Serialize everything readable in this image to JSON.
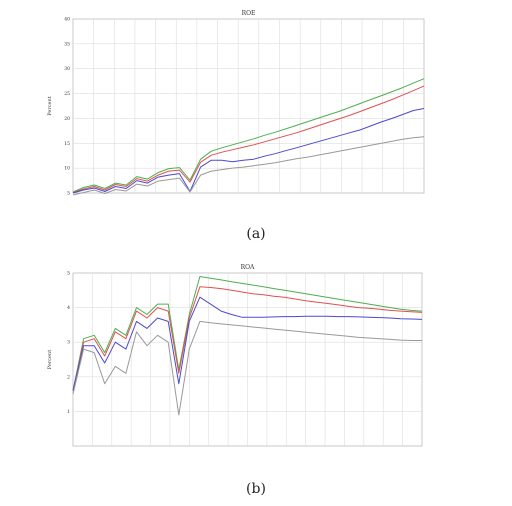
{
  "captions": [
    "(a)",
    "(b)"
  ],
  "chart_data": [
    {
      "type": "line",
      "title": "ROE",
      "ylabel": "Percent",
      "ylim": [
        5,
        40
      ],
      "yticks": [
        "5",
        "10",
        "15",
        "20",
        "25",
        "30",
        "35",
        "40"
      ],
      "grid": true,
      "x": [
        0,
        1,
        2,
        3,
        4,
        5,
        6,
        7,
        8,
        9,
        10,
        11,
        12,
        13,
        14,
        15,
        16,
        17,
        18,
        19,
        20,
        21,
        22,
        23,
        24,
        25,
        26,
        27,
        28,
        29,
        30,
        31,
        32,
        33
      ],
      "series": [
        {
          "color": "#4caf50",
          "values": [
            5.2,
            6.1,
            6.6,
            5.9,
            7.0,
            6.6,
            8.3,
            7.8,
            9.1,
            9.9,
            10.1,
            7.6,
            11.8,
            13.4,
            14.1,
            14.7,
            15.3,
            15.9,
            16.6,
            17.2,
            17.9,
            18.6,
            19.3,
            20.0,
            20.7,
            21.4,
            22.2,
            23.0,
            23.8,
            24.6,
            25.4,
            26.2,
            27.1,
            28.0
          ]
        },
        {
          "color": "#e05050",
          "values": [
            5.1,
            5.8,
            6.3,
            5.6,
            6.7,
            6.3,
            7.9,
            7.4,
            8.6,
            9.4,
            9.6,
            7.2,
            11.2,
            12.6,
            13.2,
            13.7,
            14.2,
            14.7,
            15.3,
            15.9,
            16.5,
            17.1,
            17.8,
            18.5,
            19.2,
            19.9,
            20.6,
            21.4,
            22.2,
            23.0,
            23.8,
            24.7,
            25.6,
            26.5
          ]
        },
        {
          "color": "#4a4ad0",
          "values": [
            5.0,
            5.6,
            6.0,
            5.3,
            6.3,
            5.9,
            7.5,
            7.0,
            8.2,
            8.6,
            8.9,
            5.3,
            10.2,
            11.6,
            11.6,
            11.3,
            11.6,
            11.8,
            12.4,
            12.9,
            13.5,
            14.1,
            14.7,
            15.3,
            15.9,
            16.5,
            17.1,
            17.7,
            18.5,
            19.3,
            20.0,
            20.8,
            21.6,
            22.0
          ]
        },
        {
          "color": "#999999",
          "values": [
            4.6,
            5.1,
            5.6,
            4.9,
            5.7,
            5.4,
            6.8,
            6.4,
            7.4,
            7.7,
            8.0,
            5.2,
            8.6,
            9.4,
            9.7,
            10.0,
            10.2,
            10.5,
            10.8,
            11.1,
            11.5,
            11.9,
            12.2,
            12.6,
            13.0,
            13.4,
            13.8,
            14.2,
            14.6,
            15.0,
            15.4,
            15.8,
            16.1,
            16.3
          ]
        }
      ]
    },
    {
      "type": "line",
      "title": "ROA",
      "ylabel": "Percent",
      "ylim": [
        0,
        5
      ],
      "yticks": [
        "1",
        "2",
        "3",
        "4",
        "5"
      ],
      "grid": true,
      "x": [
        0,
        1,
        2,
        3,
        4,
        5,
        6,
        7,
        8,
        9,
        10,
        11,
        12,
        13,
        14,
        15,
        16,
        17,
        18,
        19,
        20,
        21,
        22,
        23,
        24,
        25,
        26,
        27,
        28,
        29,
        30,
        31,
        32,
        33
      ],
      "series": [
        {
          "color": "#4caf50",
          "values": [
            1.6,
            3.1,
            3.2,
            2.7,
            3.4,
            3.2,
            4.0,
            3.8,
            4.1,
            4.1,
            2.2,
            3.8,
            4.9,
            4.85,
            4.8,
            4.75,
            4.7,
            4.65,
            4.6,
            4.55,
            4.5,
            4.45,
            4.4,
            4.35,
            4.3,
            4.25,
            4.2,
            4.15,
            4.1,
            4.05,
            4.0,
            3.95,
            3.92,
            3.9
          ]
        },
        {
          "color": "#e05050",
          "values": [
            1.6,
            3.0,
            3.1,
            2.6,
            3.3,
            3.1,
            3.9,
            3.7,
            4.0,
            3.9,
            2.1,
            3.7,
            4.6,
            4.58,
            4.55,
            4.5,
            4.45,
            4.4,
            4.37,
            4.33,
            4.3,
            4.25,
            4.2,
            4.16,
            4.12,
            4.08,
            4.04,
            4.0,
            3.98,
            3.95,
            3.92,
            3.9,
            3.88,
            3.86
          ]
        },
        {
          "color": "#4a4ad0",
          "values": [
            1.6,
            2.9,
            2.9,
            2.4,
            3.0,
            2.8,
            3.6,
            3.4,
            3.7,
            3.6,
            1.8,
            3.6,
            4.3,
            4.1,
            3.9,
            3.8,
            3.72,
            3.72,
            3.72,
            3.73,
            3.74,
            3.74,
            3.75,
            3.75,
            3.75,
            3.74,
            3.74,
            3.73,
            3.72,
            3.71,
            3.7,
            3.68,
            3.67,
            3.66
          ]
        },
        {
          "color": "#999999",
          "values": [
            1.5,
            2.8,
            2.7,
            1.8,
            2.3,
            2.1,
            3.3,
            2.9,
            3.2,
            3.0,
            0.9,
            2.8,
            3.6,
            3.56,
            3.53,
            3.5,
            3.47,
            3.44,
            3.41,
            3.38,
            3.35,
            3.32,
            3.29,
            3.26,
            3.23,
            3.2,
            3.17,
            3.14,
            3.12,
            3.1,
            3.08,
            3.06,
            3.05,
            3.05
          ]
        }
      ]
    }
  ]
}
